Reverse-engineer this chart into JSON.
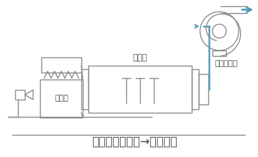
{
  "bg_color": "#ffffff",
  "line_color": "#888888",
  "blue_color": "#5599bb",
  "text_color": "#444444",
  "title_bottom": "バーナ：Ｃ重油→都市ガス",
  "label_dryer": "乾燥機",
  "label_furnace": "熱風炉",
  "label_fan": "誘引ファン",
  "fig_w": 3.74,
  "fig_h": 2.27,
  "dpi": 100
}
